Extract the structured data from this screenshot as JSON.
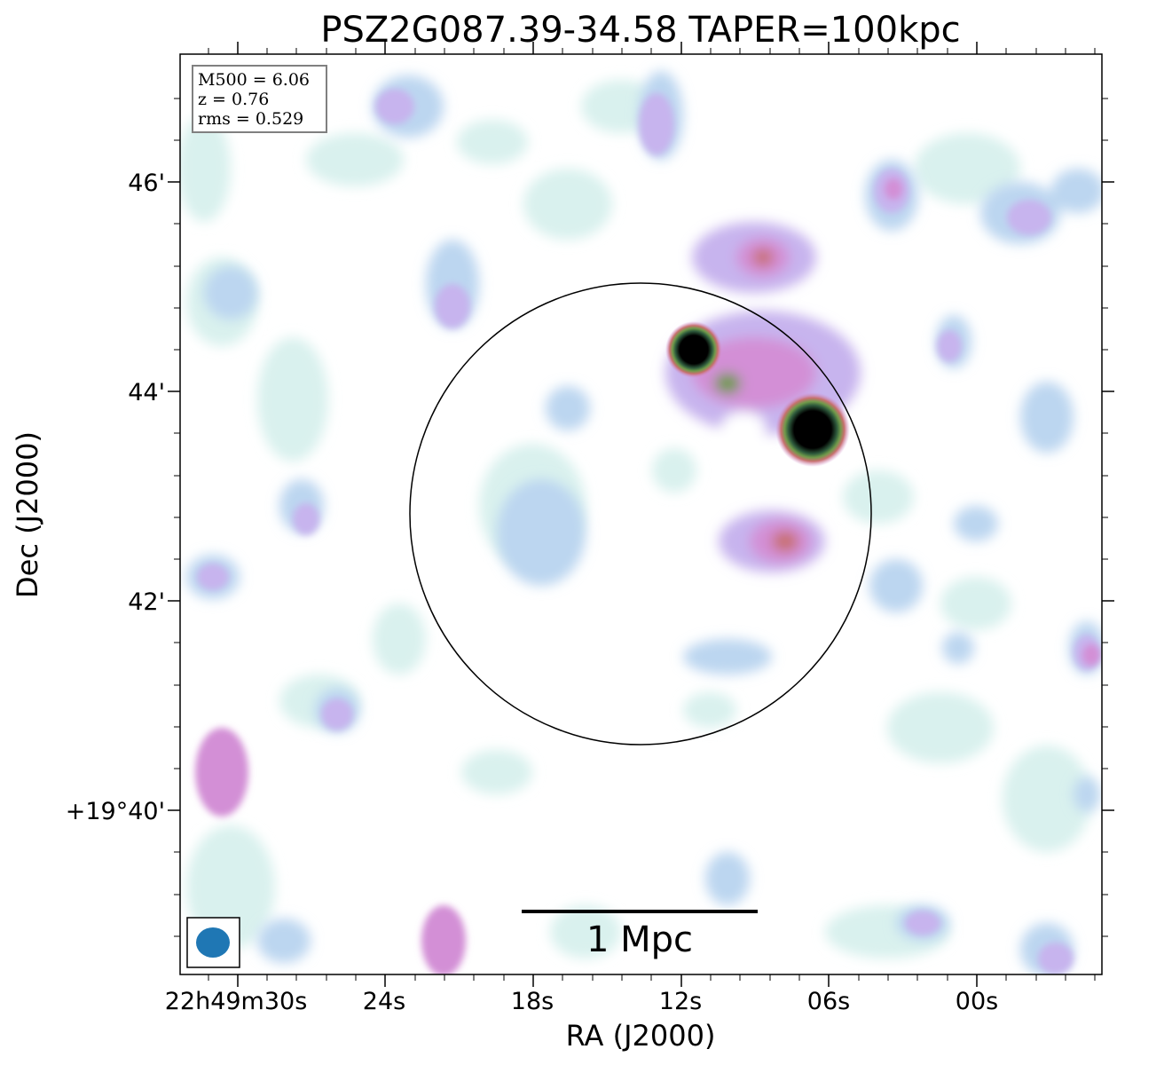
{
  "figure": {
    "title": "PSZ2G087.39-34.58 TAPER=100kpc",
    "xlabel": "RA (J2000)",
    "ylabel": "Dec (J2000)",
    "ra_ticks": [
      "22h49m30s",
      "24s",
      "18s",
      "12s",
      "06s",
      "00s"
    ],
    "dec_ticks": [
      "46'",
      "44'",
      "42'",
      "+19°40'"
    ],
    "info_box": {
      "m500": "M500 = 6.06",
      "z": "z = 0.76",
      "rms": "rms = 0.529"
    },
    "scale_bar_label": "1 Mpc",
    "colors": {
      "faint": "#d9f1ee",
      "low": "#bcd6f0",
      "mid": "#c7b4ee",
      "high": "#d38fd6",
      "peak": "#c8706e",
      "green": "#6f9a4a",
      "core": "#000000",
      "beam": "#1f77b4"
    }
  }
}
